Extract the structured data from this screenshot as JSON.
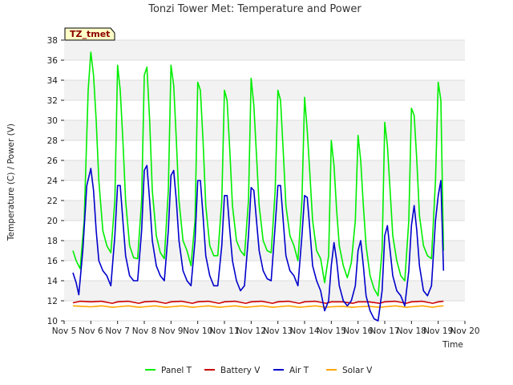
{
  "chart_data": {
    "type": "line",
    "title": "Tonzi Tower Met: Temperature and Power",
    "xlabel": "Time",
    "ylabel": "Temperature (C) / Power (V)",
    "tag": "TZ_tmet",
    "xlim": [
      5,
      20
    ],
    "ylim": [
      10,
      38
    ],
    "x_ticks": [
      5,
      6,
      7,
      8,
      9,
      10,
      11,
      12,
      13,
      14,
      15,
      16,
      17,
      18,
      19,
      20
    ],
    "x_tick_labels": [
      "Nov 5",
      "Nov 6",
      "Nov 7",
      "Nov 8",
      "Nov 9",
      "Nov 10",
      "Nov 11",
      "Nov 12",
      "Nov 13",
      "Nov 14",
      "Nov 15",
      "Nov 16",
      "Nov 17",
      "Nov 18",
      "Nov 19",
      "Nov 20"
    ],
    "y_ticks": [
      10,
      12,
      14,
      16,
      18,
      20,
      22,
      24,
      26,
      28,
      30,
      32,
      34,
      36,
      38
    ],
    "y_tick_labels": [
      "10",
      "12",
      "14",
      "16",
      "18",
      "20",
      "22",
      "24",
      "26",
      "28",
      "30",
      "32",
      "34",
      "36",
      "38"
    ],
    "series": [
      {
        "name": "Panel T",
        "color": "#00ee00",
        "x": [
          5.33,
          5.45,
          5.6,
          5.75,
          5.9,
          6.0,
          6.1,
          6.2,
          6.3,
          6.45,
          6.6,
          6.75,
          6.9,
          7.0,
          7.1,
          7.2,
          7.3,
          7.45,
          7.6,
          7.75,
          7.9,
          8.0,
          8.1,
          8.2,
          8.3,
          8.45,
          8.6,
          8.75,
          8.9,
          9.0,
          9.1,
          9.2,
          9.3,
          9.45,
          9.6,
          9.75,
          9.9,
          10.0,
          10.1,
          10.2,
          10.3,
          10.45,
          10.6,
          10.75,
          10.9,
          11.0,
          11.1,
          11.2,
          11.3,
          11.45,
          11.6,
          11.75,
          11.9,
          12.0,
          12.1,
          12.2,
          12.3,
          12.45,
          12.6,
          12.75,
          12.9,
          13.0,
          13.1,
          13.2,
          13.3,
          13.45,
          13.6,
          13.75,
          13.9,
          14.0,
          14.1,
          14.2,
          14.3,
          14.45,
          14.6,
          14.75,
          14.9,
          15.0,
          15.1,
          15.2,
          15.3,
          15.45,
          15.6,
          15.75,
          15.9,
          16.0,
          16.1,
          16.2,
          16.3,
          16.45,
          16.6,
          16.75,
          16.9,
          17.0,
          17.1,
          17.2,
          17.3,
          17.45,
          17.6,
          17.75,
          17.9,
          18.0,
          18.1,
          18.2,
          18.3,
          18.45,
          18.6,
          18.75,
          18.9,
          19.0,
          19.1,
          19.2
        ],
        "y": [
          17.0,
          16.0,
          15.2,
          20.0,
          33.0,
          36.8,
          34.5,
          30.0,
          24.0,
          19.0,
          17.5,
          16.8,
          22.0,
          35.5,
          33.0,
          28.0,
          22.0,
          17.5,
          16.3,
          16.2,
          22.0,
          34.5,
          35.3,
          30.0,
          23.0,
          18.5,
          16.8,
          16.2,
          23.0,
          35.5,
          33.5,
          28.0,
          22.0,
          18.0,
          17.0,
          15.5,
          20.0,
          33.8,
          33.0,
          28.0,
          21.5,
          17.5,
          16.5,
          16.5,
          22.0,
          33.0,
          32.0,
          27.0,
          21.5,
          18.0,
          17.0,
          16.5,
          22.0,
          34.2,
          31.5,
          26.5,
          21.5,
          18.0,
          17.0,
          16.8,
          23.0,
          33.0,
          32.0,
          27.0,
          21.5,
          18.5,
          17.5,
          16.0,
          22.0,
          32.3,
          29.0,
          24.5,
          20.0,
          17.0,
          16.2,
          13.8,
          16.5,
          28.0,
          25.5,
          21.0,
          17.5,
          15.5,
          14.3,
          15.8,
          20.0,
          28.5,
          26.0,
          21.5,
          17.5,
          14.5,
          13.2,
          12.5,
          17.0,
          29.8,
          27.5,
          23.0,
          18.5,
          16.0,
          14.5,
          14.0,
          20.0,
          31.2,
          30.5,
          26.0,
          20.5,
          17.5,
          16.5,
          16.2,
          24.0,
          33.8,
          32.0,
          17.0
        ]
      },
      {
        "name": "Battery V",
        "color": "#cc0000",
        "x": [
          5.33,
          5.6,
          6.0,
          6.4,
          6.8,
          7.0,
          7.4,
          7.8,
          8.0,
          8.4,
          8.8,
          9.0,
          9.4,
          9.8,
          10.0,
          10.4,
          10.8,
          11.0,
          11.4,
          11.8,
          12.0,
          12.4,
          12.8,
          13.0,
          13.4,
          13.8,
          14.0,
          14.4,
          14.8,
          15.0,
          15.4,
          15.8,
          16.0,
          16.4,
          16.8,
          17.0,
          17.4,
          17.8,
          18.0,
          18.4,
          18.8,
          19.0,
          19.2
        ],
        "y": [
          11.8,
          11.95,
          11.9,
          11.95,
          11.75,
          11.9,
          11.95,
          11.75,
          11.9,
          11.95,
          11.75,
          11.9,
          11.95,
          11.75,
          11.9,
          11.95,
          11.75,
          11.9,
          11.95,
          11.75,
          11.9,
          11.95,
          11.75,
          11.9,
          11.95,
          11.75,
          11.9,
          11.95,
          11.75,
          11.9,
          11.9,
          11.75,
          11.9,
          11.9,
          11.75,
          11.9,
          11.95,
          11.75,
          11.9,
          11.95,
          11.75,
          11.9,
          11.95
        ]
      },
      {
        "name": "Air T",
        "color": "#0000cc",
        "x": [
          5.33,
          5.45,
          5.55,
          5.7,
          5.85,
          6.0,
          6.1,
          6.2,
          6.3,
          6.45,
          6.6,
          6.75,
          6.9,
          7.0,
          7.1,
          7.2,
          7.3,
          7.45,
          7.6,
          7.75,
          7.9,
          8.0,
          8.1,
          8.2,
          8.3,
          8.45,
          8.6,
          8.75,
          8.9,
          9.0,
          9.1,
          9.2,
          9.3,
          9.45,
          9.6,
          9.75,
          9.9,
          10.0,
          10.1,
          10.2,
          10.3,
          10.45,
          10.6,
          10.75,
          10.9,
          11.0,
          11.1,
          11.2,
          11.3,
          11.45,
          11.6,
          11.75,
          11.9,
          12.0,
          12.1,
          12.2,
          12.3,
          12.45,
          12.6,
          12.75,
          12.9,
          13.0,
          13.1,
          13.2,
          13.3,
          13.45,
          13.6,
          13.75,
          13.9,
          14.0,
          14.1,
          14.2,
          14.3,
          14.45,
          14.6,
          14.75,
          14.9,
          15.0,
          15.1,
          15.2,
          15.3,
          15.45,
          15.6,
          15.75,
          15.9,
          16.0,
          16.1,
          16.2,
          16.3,
          16.45,
          16.6,
          16.75,
          16.9,
          17.0,
          17.1,
          17.2,
          17.3,
          17.45,
          17.6,
          17.75,
          17.9,
          18.0,
          18.1,
          18.2,
          18.3,
          18.45,
          18.6,
          18.75,
          18.9,
          19.0,
          19.1,
          19.2
        ],
        "y": [
          14.8,
          13.8,
          12.6,
          17.0,
          23.5,
          25.2,
          23.0,
          19.0,
          16.0,
          15.0,
          14.5,
          13.5,
          18.5,
          23.5,
          23.5,
          20.0,
          16.5,
          14.5,
          14.0,
          14.0,
          19.0,
          25.0,
          25.5,
          22.0,
          18.0,
          15.5,
          14.5,
          14.0,
          19.0,
          24.5,
          25.0,
          22.0,
          18.0,
          15.0,
          14.0,
          13.5,
          18.0,
          24.0,
          24.0,
          20.5,
          16.5,
          14.5,
          13.5,
          13.5,
          17.5,
          22.5,
          22.5,
          19.0,
          16.0,
          14.0,
          13.0,
          13.5,
          18.5,
          23.3,
          23.0,
          20.0,
          17.0,
          15.0,
          14.2,
          14.0,
          19.5,
          23.5,
          23.5,
          20.0,
          16.5,
          15.0,
          14.5,
          13.5,
          18.5,
          22.5,
          22.3,
          19.0,
          15.5,
          14.0,
          13.0,
          11.0,
          12.0,
          15.5,
          17.8,
          16.0,
          13.5,
          12.0,
          11.5,
          12.0,
          13.5,
          17.0,
          18.0,
          15.5,
          12.5,
          11.0,
          10.2,
          10.0,
          13.0,
          18.5,
          19.5,
          17.0,
          14.5,
          13.0,
          12.5,
          11.5,
          15.0,
          19.5,
          21.5,
          19.0,
          15.5,
          13.0,
          12.5,
          13.5,
          20.0,
          22.5,
          24.0,
          15.0
        ]
      },
      {
        "name": "Solar V",
        "color": "#ffa500",
        "x": [
          5.33,
          5.7,
          6.0,
          6.4,
          6.8,
          7.0,
          7.4,
          7.8,
          8.0,
          8.4,
          8.8,
          9.0,
          9.4,
          9.8,
          10.0,
          10.4,
          10.8,
          11.0,
          11.4,
          11.8,
          12.0,
          12.4,
          12.8,
          13.0,
          13.4,
          13.8,
          14.0,
          14.4,
          14.8,
          15.0,
          15.4,
          15.8,
          16.0,
          16.4,
          16.8,
          17.0,
          17.4,
          17.8,
          18.0,
          18.4,
          18.8,
          19.0,
          19.2
        ],
        "y": [
          11.5,
          11.45,
          11.4,
          11.5,
          11.35,
          11.4,
          11.5,
          11.35,
          11.4,
          11.5,
          11.35,
          11.4,
          11.5,
          11.35,
          11.4,
          11.5,
          11.35,
          11.4,
          11.5,
          11.35,
          11.4,
          11.5,
          11.35,
          11.4,
          11.5,
          11.35,
          11.4,
          11.5,
          11.35,
          11.4,
          11.45,
          11.35,
          11.4,
          11.45,
          11.35,
          11.4,
          11.5,
          11.35,
          11.4,
          11.5,
          11.35,
          11.45,
          11.5
        ]
      }
    ]
  }
}
